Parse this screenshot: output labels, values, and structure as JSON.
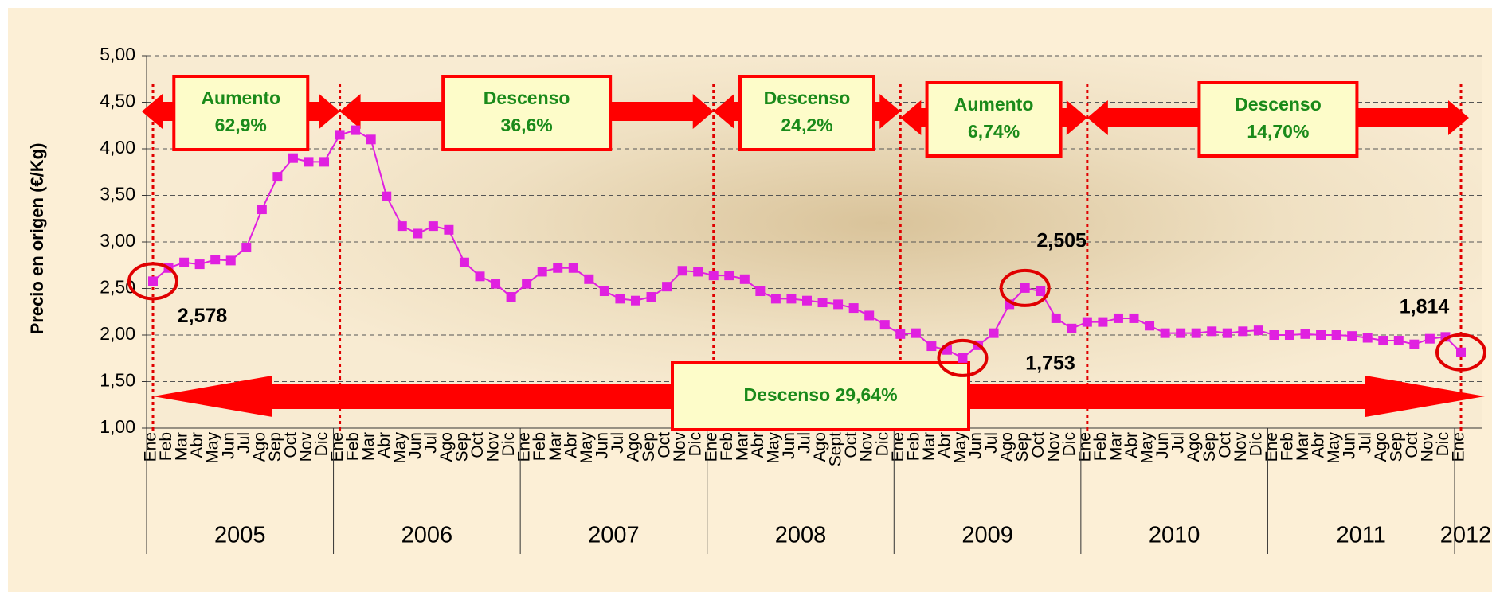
{
  "chart_data": {
    "type": "line",
    "y_label": "Precio en origen (€/Kg)",
    "categories": [
      "Ene",
      "Feb",
      "Mar",
      "Abr",
      "May",
      "Jun",
      "Jul",
      "Ago",
      "Sep",
      "Oct",
      "Nov",
      "Dic",
      "Ene",
      "Feb",
      "Mar",
      "Abr",
      "May",
      "Jun",
      "Jul",
      "Ago",
      "Sep",
      "Oct",
      "Nov",
      "Dic",
      "Ene",
      "Feb",
      "Mar",
      "Abr",
      "May",
      "Jun",
      "Jul",
      "Ago",
      "Sep",
      "Oct",
      "Nov",
      "Dic",
      "Ene",
      "Feb",
      "Mar",
      "Abr",
      "May",
      "Jun",
      "Jul",
      "Ago",
      "Sept",
      "Oct",
      "Nov",
      "Dic",
      "Ene",
      "Feb",
      "Mar",
      "Abr",
      "May",
      "Jun",
      "Jul",
      "Ago",
      "Sep",
      "Oct",
      "Nov",
      "Dic",
      "Ene",
      "Feb",
      "Mar",
      "Abr",
      "May",
      "Jun",
      "Jul",
      "Ago",
      "Sep",
      "Oct",
      "Nov",
      "Dic",
      "Ene",
      "Feb",
      "Mar",
      "Abr",
      "May",
      "Jun",
      "Jul",
      "Ago",
      "Sep",
      "Oct",
      "Nov",
      "Dic",
      "Ene"
    ],
    "years": [
      "2005",
      "2006",
      "2007",
      "2008",
      "2009",
      "2010",
      "2011",
      "2012"
    ],
    "series": [
      {
        "name": "Precio",
        "color": "#e020e0",
        "values": [
          2.578,
          2.72,
          2.78,
          2.76,
          2.81,
          2.8,
          2.94,
          3.35,
          3.7,
          3.9,
          3.86,
          3.86,
          4.15,
          4.2,
          4.1,
          3.49,
          3.17,
          3.09,
          3.17,
          3.13,
          2.78,
          2.63,
          2.55,
          2.41,
          2.55,
          2.68,
          2.72,
          2.72,
          2.6,
          2.47,
          2.39,
          2.37,
          2.41,
          2.52,
          2.69,
          2.68,
          2.64,
          2.64,
          2.6,
          2.47,
          2.39,
          2.39,
          2.37,
          2.35,
          2.33,
          2.29,
          2.21,
          2.11,
          2.01,
          2.02,
          1.88,
          1.84,
          1.753,
          1.89,
          2.02,
          2.33,
          2.505,
          2.47,
          2.18,
          2.07,
          2.14,
          2.14,
          2.18,
          2.18,
          2.1,
          2.02,
          2.02,
          2.02,
          2.04,
          2.02,
          2.04,
          2.05,
          2.0,
          2.0,
          2.01,
          2.0,
          2.0,
          1.99,
          1.97,
          1.94,
          1.94,
          1.9,
          1.96,
          1.98,
          1.814
        ],
        "value_labels": [
          "2,578",
          null,
          null,
          null,
          null,
          null,
          null,
          null,
          null,
          null,
          null,
          null,
          null,
          null,
          null,
          null,
          null,
          null,
          null,
          null,
          null,
          null,
          null,
          null,
          null,
          null,
          null,
          null,
          null,
          null,
          null,
          null,
          null,
          null,
          null,
          null,
          null,
          null,
          null,
          null,
          null,
          null,
          null,
          null,
          null,
          null,
          null,
          null,
          null,
          null,
          null,
          null,
          "1,753",
          null,
          null,
          null,
          "2,505",
          null,
          null,
          null,
          null,
          null,
          null,
          null,
          null,
          null,
          null,
          null,
          null,
          null,
          null,
          null,
          null,
          null,
          null,
          null,
          null,
          null,
          null,
          null,
          null,
          null,
          null,
          null,
          "1,814"
        ]
      }
    ],
    "ylim": [
      1,
      5
    ],
    "yticks": [
      {
        "value": 1,
        "label": "1,00"
      },
      {
        "value": 1.5,
        "label": "1,50"
      },
      {
        "value": 2,
        "label": "2,00"
      },
      {
        "value": 2.5,
        "label": "2,50"
      },
      {
        "value": 3,
        "label": "3,00"
      },
      {
        "value": 3.5,
        "label": "3,50"
      },
      {
        "value": 4,
        "label": "4,00"
      },
      {
        "value": 4.5,
        "label": "4,50"
      },
      {
        "value": 5,
        "label": "5,00"
      }
    ],
    "grid": true,
    "annotations": [
      {
        "lines": [
          "Aumento",
          "62,9%"
        ]
      },
      {
        "lines": [
          "Descenso",
          "36,6%"
        ]
      },
      {
        "lines": [
          "Descenso",
          "24,2%"
        ]
      },
      {
        "lines": [
          "Aumento",
          "6,74%"
        ]
      },
      {
        "lines": [
          "Descenso",
          "14,70%"
        ]
      },
      {
        "lines": [
          "Descenso 29,64%"
        ]
      }
    ]
  }
}
